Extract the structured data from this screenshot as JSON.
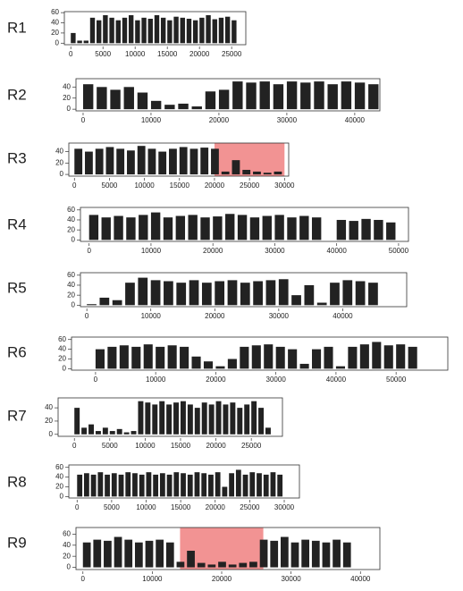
{
  "chart_data": [
    {
      "type": "bar",
      "title": "R1",
      "x": [
        0,
        1000,
        2000,
        3000,
        4000,
        5000,
        6000,
        7000,
        8000,
        9000,
        10000,
        11000,
        12000,
        13000,
        14000,
        15000,
        16000,
        17000,
        18000,
        19000,
        20000,
        21000,
        22000,
        23000,
        24000,
        25000
      ],
      "values": [
        20,
        5,
        5,
        50,
        45,
        55,
        50,
        45,
        50,
        55,
        45,
        50,
        48,
        55,
        50,
        45,
        52,
        50,
        48,
        45,
        50,
        55,
        47,
        50,
        52,
        45
      ],
      "xlim": [
        -1000,
        27200
      ],
      "ylim": [
        -3,
        62
      ],
      "xticks": [
        0,
        5000,
        10000,
        15000,
        20000,
        25000
      ],
      "yticks": [
        0,
        20,
        40,
        60
      ],
      "color": "#222222"
    },
    {
      "type": "bar",
      "title": "R2",
      "x": [
        0,
        2000,
        4000,
        6000,
        8000,
        10000,
        12000,
        14000,
        16000,
        18000,
        20000,
        22000,
        24000,
        26000,
        28000,
        30000,
        32000,
        34000,
        36000,
        38000,
        40000,
        42000
      ],
      "values": [
        45,
        40,
        35,
        40,
        30,
        15,
        8,
        10,
        5,
        32,
        35,
        50,
        48,
        50,
        45,
        50,
        48,
        50,
        45,
        50,
        48,
        45
      ],
      "xlim": [
        -1050,
        43700
      ],
      "ylim": [
        -3,
        55
      ],
      "xticks": [
        0,
        10000,
        20000,
        30000,
        40000
      ],
      "yticks": [
        0,
        20,
        40
      ],
      "color": "#222222"
    },
    {
      "type": "bar",
      "title": "R3",
      "x": [
        0,
        1500,
        3000,
        4500,
        6000,
        7500,
        9000,
        10500,
        12000,
        13500,
        15000,
        16500,
        18000,
        19500,
        21000,
        22500,
        24000,
        25500,
        27000,
        28500
      ],
      "values": [
        45,
        40,
        45,
        48,
        45,
        42,
        50,
        45,
        40,
        45,
        48,
        45,
        47,
        45,
        5,
        25,
        8,
        5,
        3,
        5
      ],
      "xlim": [
        -800,
        30600
      ],
      "ylim": [
        -3,
        55
      ],
      "xticks": [
        0,
        5000,
        10000,
        15000,
        20000,
        25000,
        30000
      ],
      "yticks": [
        0,
        20,
        40
      ],
      "highlight": [
        20000,
        30000
      ],
      "highlight_color": "#f08080",
      "color": "#222222"
    },
    {
      "type": "bar",
      "title": "R4",
      "x": [
        0,
        2000,
        4000,
        6000,
        8000,
        10000,
        12000,
        14000,
        16000,
        18000,
        20000,
        22000,
        24000,
        26000,
        28000,
        30000,
        32000,
        34000,
        36000,
        38000,
        40000,
        42000,
        44000,
        46000,
        48000
      ],
      "values": [
        50,
        45,
        48,
        45,
        50,
        55,
        45,
        48,
        50,
        45,
        47,
        52,
        50,
        45,
        48,
        50,
        45,
        48,
        45,
        0,
        40,
        38,
        42,
        40,
        35
      ],
      "xlim": [
        -1400,
        51600
      ],
      "ylim": [
        -3,
        65
      ],
      "xticks": [
        0,
        10000,
        20000,
        30000,
        40000,
        50000
      ],
      "yticks": [
        0,
        20,
        40,
        60
      ],
      "color": "#222222"
    },
    {
      "type": "bar",
      "title": "R5",
      "x": [
        0,
        2000,
        4000,
        6000,
        8000,
        10000,
        12000,
        14000,
        16000,
        18000,
        20000,
        22000,
        24000,
        26000,
        28000,
        30000,
        32000,
        34000,
        36000,
        38000,
        40000,
        42000,
        44000
      ],
      "values": [
        2,
        15,
        10,
        45,
        55,
        50,
        48,
        45,
        50,
        45,
        48,
        50,
        45,
        48,
        50,
        52,
        20,
        40,
        5,
        45,
        50,
        48,
        45
      ],
      "xlim": [
        -1000,
        50000
      ],
      "ylim": [
        -3,
        65
      ],
      "xticks": [
        0,
        10000,
        20000,
        30000,
        40000
      ],
      "yticks": [
        0,
        20,
        40,
        60
      ],
      "color": "#222222"
    },
    {
      "type": "bar",
      "title": "R6",
      "x": [
        0,
        2000,
        4000,
        6000,
        8000,
        10000,
        12000,
        14000,
        16000,
        18000,
        20000,
        22000,
        24000,
        26000,
        28000,
        30000,
        32000,
        34000,
        36000,
        38000,
        40000,
        42000,
        44000,
        46000,
        48000,
        50000,
        52000
      ],
      "values": [
        40,
        45,
        48,
        45,
        50,
        45,
        48,
        45,
        25,
        15,
        5,
        20,
        45,
        48,
        50,
        45,
        40,
        10,
        40,
        45,
        5,
        45,
        50,
        55,
        48,
        50,
        45
      ],
      "xlim": [
        -4000,
        58600
      ],
      "ylim": [
        -3,
        65
      ],
      "xticks": [
        0,
        10000,
        20000,
        30000,
        40000,
        50000
      ],
      "yticks": [
        0,
        20,
        40,
        60
      ],
      "color": "#222222"
    },
    {
      "type": "bar",
      "title": "R7",
      "x": [
        0,
        1000,
        2000,
        3000,
        4000,
        5000,
        6000,
        7000,
        8000,
        9000,
        10000,
        11000,
        12000,
        13000,
        14000,
        15000,
        16000,
        17000,
        18000,
        19000,
        20000,
        21000,
        22000,
        23000,
        24000,
        25000,
        26000,
        27000
      ],
      "values": [
        40,
        10,
        15,
        5,
        10,
        5,
        8,
        3,
        5,
        50,
        48,
        45,
        50,
        45,
        48,
        50,
        45,
        40,
        48,
        45,
        50,
        45,
        48,
        40,
        45,
        50,
        40,
        10
      ],
      "xlim": [
        -2300,
        29400
      ],
      "ylim": [
        -3,
        55
      ],
      "xticks": [
        0,
        5000,
        10000,
        15000,
        20000,
        25000
      ],
      "yticks": [
        0,
        20,
        40
      ],
      "color": "#222222"
    },
    {
      "type": "bar",
      "title": "R8",
      "x": [
        0,
        1000,
        2000,
        3000,
        4000,
        5000,
        6000,
        7000,
        8000,
        9000,
        10000,
        11000,
        12000,
        13000,
        14000,
        15000,
        16000,
        17000,
        18000,
        19000,
        20000,
        21000,
        22000,
        23000,
        24000,
        25000,
        26000,
        27000,
        28000,
        29000
      ],
      "values": [
        45,
        48,
        45,
        50,
        45,
        48,
        45,
        50,
        48,
        45,
        50,
        45,
        48,
        45,
        50,
        48,
        45,
        50,
        48,
        45,
        50,
        20,
        48,
        55,
        45,
        50,
        48,
        45,
        50,
        45
      ],
      "xlim": [
        -1200,
        32200
      ],
      "ylim": [
        -3,
        65
      ],
      "xticks": [
        0,
        5000,
        10000,
        15000,
        20000,
        25000,
        30000
      ],
      "yticks": [
        0,
        20,
        40,
        60
      ],
      "color": "#222222"
    },
    {
      "type": "bar",
      "title": "R9",
      "x": [
        0,
        1500,
        3000,
        4500,
        6000,
        7500,
        9000,
        10500,
        12000,
        13500,
        15000,
        16500,
        18000,
        19500,
        21000,
        22500,
        24000,
        25500,
        27000,
        28500,
        30000,
        31500,
        33000,
        34500,
        36000,
        37500
      ],
      "values": [
        45,
        50,
        48,
        55,
        50,
        45,
        48,
        50,
        45,
        10,
        30,
        8,
        5,
        10,
        5,
        8,
        10,
        50,
        48,
        55,
        45,
        50,
        48,
        45,
        50,
        45
      ],
      "xlim": [
        -1000,
        42800
      ],
      "ylim": [
        -4,
        72
      ],
      "xticks": [
        0,
        10000,
        20000,
        30000,
        40000
      ],
      "yticks": [
        0,
        20,
        40,
        60
      ],
      "highlight": [
        14000,
        26000
      ],
      "highlight_color": "#f08080",
      "color": "#222222"
    }
  ]
}
